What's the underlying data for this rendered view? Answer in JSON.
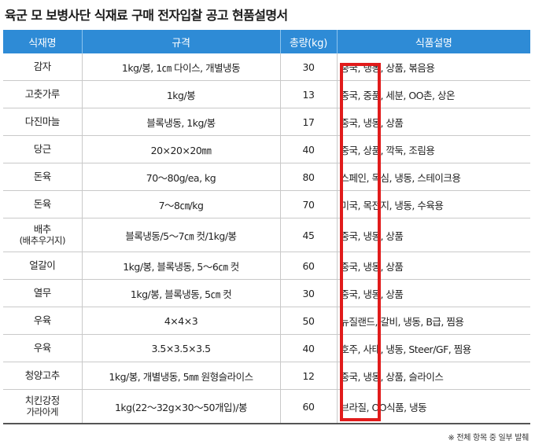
{
  "title": "육군 모 보병사단 식재료 구매 전자입찰 공고 현품설명서",
  "headers": [
    "식재명",
    "규격",
    "총량(kg)",
    "식품설명"
  ],
  "rows": [
    {
      "name": "감자",
      "spec": "1kg/봉, 1㎝ 다이스, 개별냉동",
      "qty": "30",
      "desc": "중국, 냉동, 상품, 볶음용"
    },
    {
      "name": "고춧가루",
      "spec": "1kg/봉",
      "qty": "13",
      "desc": "중국, 중품, 세분, OO촌, 상온"
    },
    {
      "name": "다진마늘",
      "spec": "블록냉동, 1kg/봉",
      "qty": "17",
      "desc": "중국, 냉동, 상품"
    },
    {
      "name": "당근",
      "spec": "20×20×20㎜",
      "qty": "40",
      "desc": "중국, 상품, 깍둑, 조림용"
    },
    {
      "name": "돈육",
      "spec": "70～80g/ea, kg",
      "qty": "80",
      "desc": "스페인, 목심, 냉동, 스테이크용"
    },
    {
      "name": "돈육",
      "spec": "7～8㎝/kg",
      "qty": "70",
      "desc": "미국, 목전지, 냉동, 수육용"
    },
    {
      "name": "배추",
      "name_sub": "(배추우거지)",
      "spec": "블록냉동/5～7㎝ 컷/1kg/봉",
      "qty": "45",
      "desc": "중국, 냉동, 상품"
    },
    {
      "name": "얼갈이",
      "spec": "1kg/봉, 블록냉동, 5～6㎝ 컷",
      "qty": "60",
      "desc": "중국, 냉동, 상품"
    },
    {
      "name": "열무",
      "spec": "1kg/봉, 블록냉동, 5㎝ 컷",
      "qty": "30",
      "desc": "중국, 냉동, 상품"
    },
    {
      "name": "우육",
      "spec": "4×4×3",
      "qty": "50",
      "desc": "뉴질랜드, 갈비, 냉동, B급, 찜용"
    },
    {
      "name": "우육",
      "spec": "3.5×3.5×3.5",
      "qty": "40",
      "desc": "호주, 사태, 냉동, Steer/GF, 찜용"
    },
    {
      "name": "청양고추",
      "spec": "1kg/봉, 개별냉동, 5㎜ 원형슬라이스",
      "qty": "12",
      "desc": "중국, 냉동, 상품, 슬라이스"
    },
    {
      "name": "치킨강정",
      "name_sub": "가라아게",
      "spec": "1kg(22～32g×30～50개입)/봉",
      "qty": "60",
      "desc": "브라질, OO식품, 냉동"
    }
  ],
  "footnote": "※ 전체 항목 중 일부 발췌",
  "colors": {
    "header_bg": "#2e8bd6",
    "highlight": "#e11b1b"
  }
}
